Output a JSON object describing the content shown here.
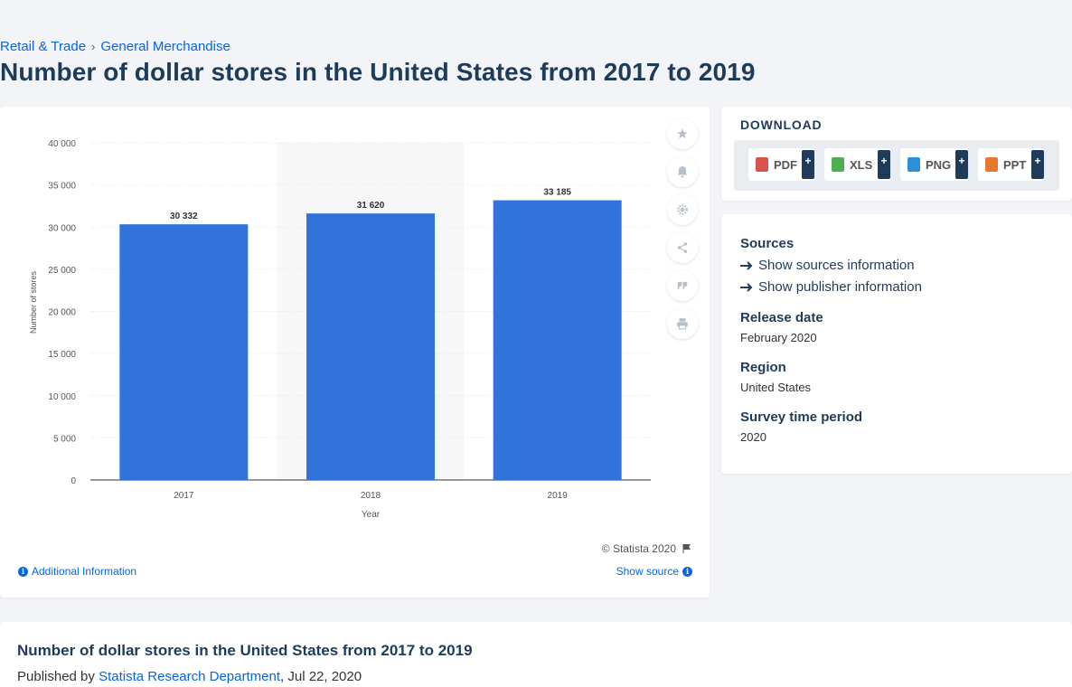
{
  "breadcrumb": {
    "items": [
      "Retail & Trade",
      "General Merchandise"
    ],
    "separator": "›"
  },
  "page_title": "Number of dollar stores in the United States from 2017 to 2019",
  "chart_data": {
    "type": "bar",
    "categories": [
      "2017",
      "2018",
      "2019"
    ],
    "values": [
      30332,
      31620,
      33185
    ],
    "value_labels": [
      "30 332",
      "31 620",
      "33 185"
    ],
    "xlabel": "Year",
    "ylabel": "Number of stores",
    "ylim": [
      0,
      40000
    ],
    "yticks": [
      0,
      5000,
      10000,
      15000,
      20000,
      25000,
      30000,
      35000,
      40000
    ],
    "ytick_labels": [
      "0",
      "5 000",
      "10 000",
      "15 000",
      "20 000",
      "25 000",
      "30 000",
      "35 000",
      "40 000"
    ],
    "grid": true,
    "highlighted_category": "2018",
    "bar_color": "#3173db"
  },
  "chart_footer": {
    "copyright": "© Statista 2020",
    "additional_info": "Additional Information",
    "show_source": "Show source"
  },
  "toolbar": {
    "icons": [
      "star-icon",
      "bell-icon",
      "gear-icon",
      "share-icon",
      "quote-icon",
      "print-icon"
    ]
  },
  "download": {
    "heading": "DOWNLOAD",
    "buttons": [
      {
        "label": "PDF",
        "color": "#d9534f"
      },
      {
        "label": "XLS",
        "color": "#4caf50"
      },
      {
        "label": "PNG",
        "color": "#2d8fd5"
      },
      {
        "label": "PPT",
        "color": "#e8772e"
      }
    ],
    "plus": "+"
  },
  "meta": {
    "sources_heading": "Sources",
    "show_sources": "Show sources information",
    "show_publisher": "Show publisher information",
    "release_heading": "Release date",
    "release_value": "February 2020",
    "region_heading": "Region",
    "region_value": "United States",
    "survey_heading": "Survey time period",
    "survey_value": "2020"
  },
  "publication": {
    "title": "Number of dollar stores in the United States from 2017 to 2019",
    "published_by": "Published by",
    "publisher": "Statista Research Department",
    "date": ", Jul 22, 2020"
  }
}
